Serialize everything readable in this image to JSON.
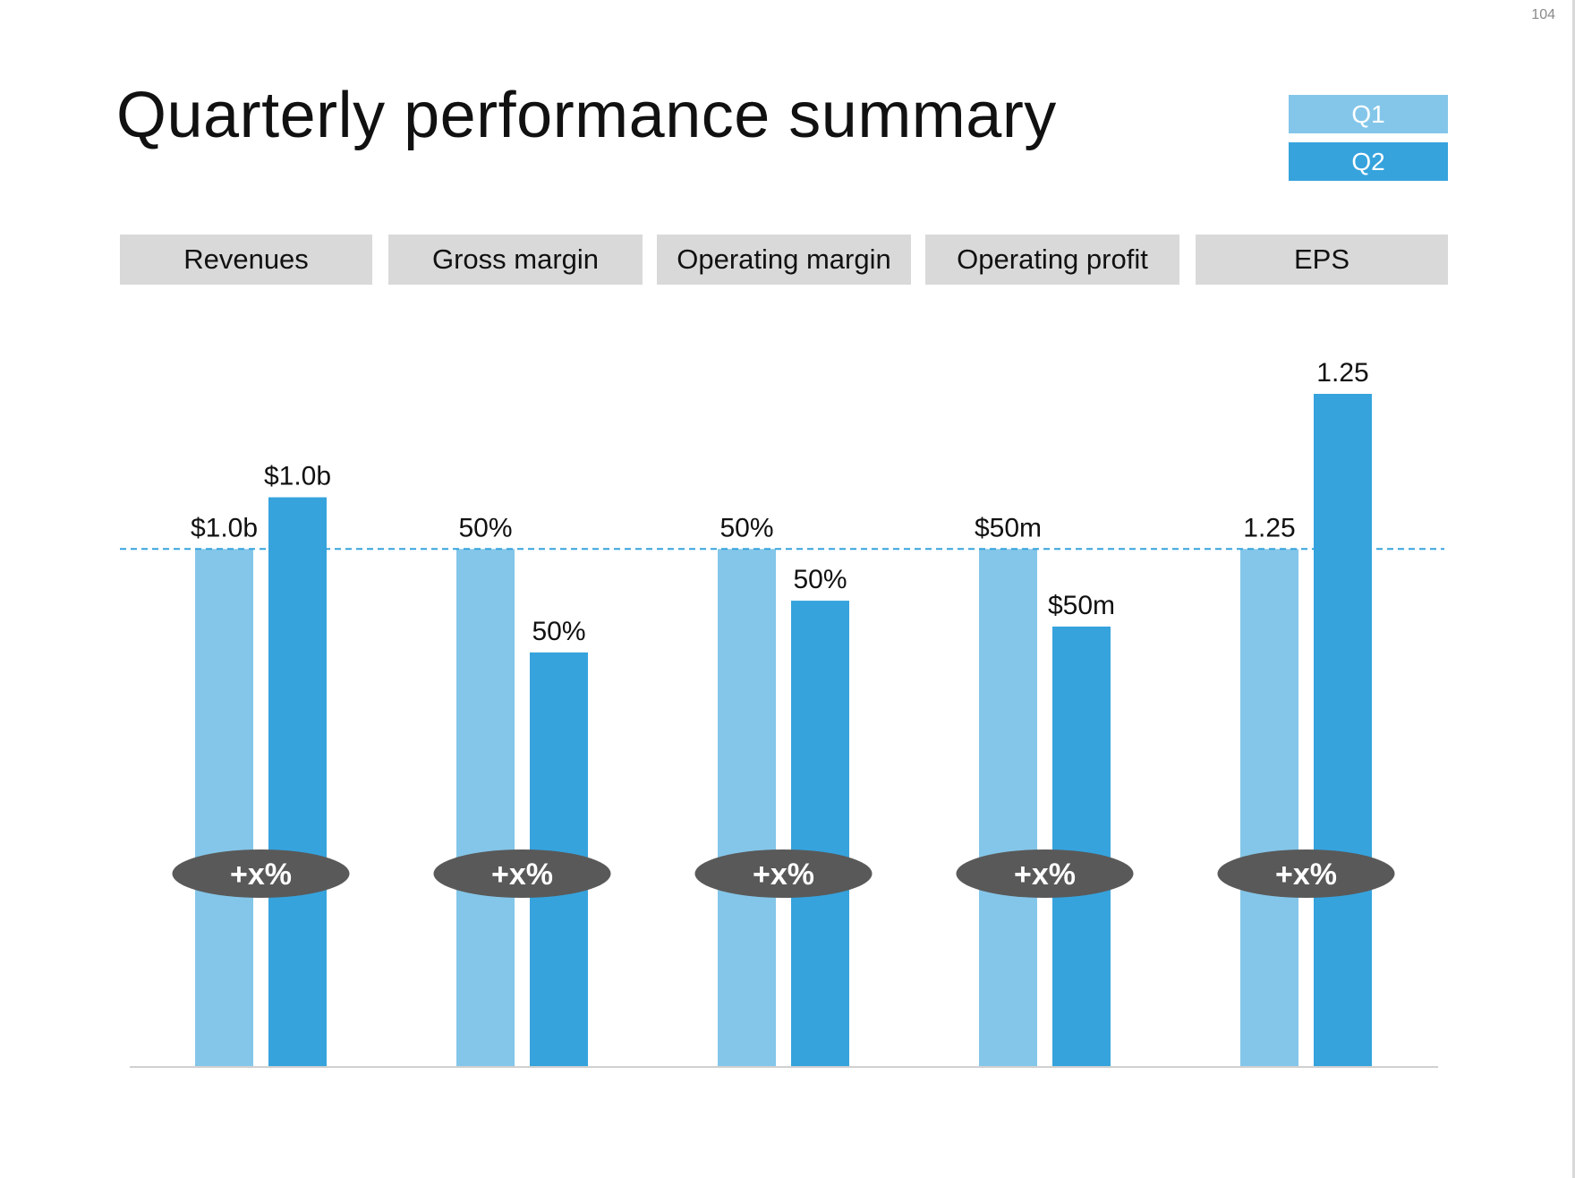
{
  "page_number": "104",
  "title": "Quarterly performance summary",
  "legend": [
    {
      "label": "Q1",
      "color": "#84c6e9"
    },
    {
      "label": "Q2",
      "color": "#36a3dd"
    }
  ],
  "colors": {
    "q1": "#84c6e9",
    "q2": "#36a3dd",
    "pill": "#595959",
    "header_bg": "#d9d9d9",
    "reference_line": "#36a3dd"
  },
  "chart_data": {
    "type": "bar",
    "title": "Quarterly performance summary",
    "categories": [
      "Revenues",
      "Gross margin",
      "Operating margin",
      "Operating profit",
      "EPS"
    ],
    "series": [
      {
        "name": "Q1",
        "values": [
          100,
          100,
          100,
          100,
          100
        ],
        "labels": [
          "$1.0b",
          "50%",
          "50%",
          "$50m",
          "1.25"
        ]
      },
      {
        "name": "Q2",
        "values": [
          110,
          80,
          90,
          85,
          130
        ],
        "labels": [
          "$1.0b",
          "50%",
          "50%",
          "$50m",
          "1.25"
        ]
      }
    ],
    "change_labels": [
      "+x%",
      "+x%",
      "+x%",
      "+x%",
      "+x%"
    ],
    "reference_line": {
      "value": 100,
      "style": "dashed"
    },
    "ylim": [
      0,
      130
    ],
    "grid": false,
    "legend_position": "top-right"
  }
}
